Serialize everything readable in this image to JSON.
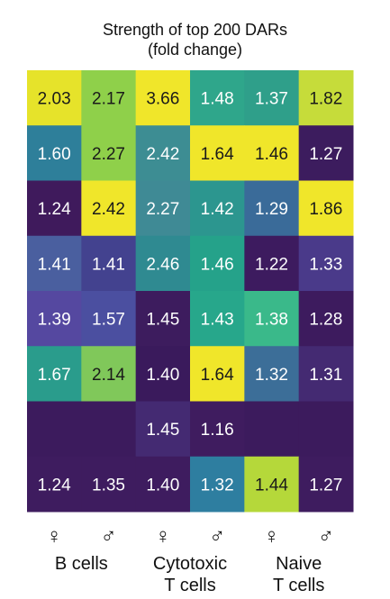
{
  "chart_data": {
    "type": "heatmap",
    "title": [
      "Strength of top 200 DARs",
      "(fold change)"
    ],
    "columns": [
      {
        "group": "B cells",
        "sex": "♀"
      },
      {
        "group": "B cells",
        "sex": "♂"
      },
      {
        "group": "Cytotoxic T cells",
        "sex": "♀"
      },
      {
        "group": "Cytotoxic T cells",
        "sex": "♂"
      },
      {
        "group": "Naive T cells",
        "sex": "♀"
      },
      {
        "group": "Naive T cells",
        "sex": "♂"
      }
    ],
    "group_labels": [
      "B cells",
      "Cytotoxic\nT cells",
      "Naive\nT cells"
    ],
    "values": [
      [
        2.03,
        2.17,
        3.66,
        1.48,
        1.37,
        1.82
      ],
      [
        1.6,
        2.27,
        2.42,
        1.64,
        1.46,
        1.27
      ],
      [
        1.24,
        2.42,
        2.27,
        1.42,
        1.29,
        1.86
      ],
      [
        1.41,
        1.41,
        2.46,
        1.46,
        1.22,
        1.33
      ],
      [
        1.39,
        1.57,
        1.45,
        1.43,
        1.38,
        1.28
      ],
      [
        1.67,
        2.14,
        1.4,
        1.64,
        1.32,
        1.31
      ],
      [
        null,
        null,
        1.45,
        1.16,
        null,
        null
      ],
      [
        1.24,
        1.35,
        1.4,
        1.32,
        1.44,
        1.27
      ]
    ],
    "value_labels": [
      [
        "2.03",
        "2.17",
        "3.66",
        "1.48",
        "1.37",
        "1.82"
      ],
      [
        "1.60",
        "2.27",
        "2.42",
        "1.64",
        "1.46",
        "1.27"
      ],
      [
        "1.24",
        "2.42",
        "2.27",
        "1.42",
        "1.29",
        "1.86"
      ],
      [
        "1.41",
        "1.41",
        "2.46",
        "1.46",
        "1.22",
        "1.33"
      ],
      [
        "1.39",
        "1.57",
        "1.45",
        "1.43",
        "1.38",
        "1.28"
      ],
      [
        "1.67",
        "2.14",
        "1.40",
        "1.64",
        "1.32",
        "1.31"
      ],
      [
        "",
        "",
        "1.45",
        "1.16",
        "",
        ""
      ],
      [
        "1.24",
        "1.35",
        "1.40",
        "1.32",
        "1.44",
        "1.27"
      ]
    ],
    "colormap": "viridis-like",
    "cell_colors": [
      [
        "#e6e32a",
        "#8fd04a",
        "#f0e62a",
        "#2fa68b",
        "#2f9f8a",
        "#c6dc3a"
      ],
      [
        "#2e7f9a",
        "#8fd04a",
        "#3d8d93",
        "#f0e62a",
        "#f0e62a",
        "#3c1c5e"
      ],
      [
        "#3f1a5c",
        "#f0e62a",
        "#3f8a95",
        "#2c968f",
        "#3a6b99",
        "#f0e62a"
      ],
      [
        "#4a5f9f",
        "#43428f",
        "#2f8a91",
        "#25a28a",
        "#3d1b5f",
        "#4a3a8a"
      ],
      [
        "#5548a0",
        "#4b4fa0",
        "#3d1c5e",
        "#27a78b",
        "#3ab98a",
        "#3d1b5e"
      ],
      [
        "#2a9c8c",
        "#80c85a",
        "#3a1a5c",
        "#f0e62a",
        "#3c6e98",
        "#442a72"
      ],
      [
        "#3c1b5d",
        "#3c1b5d",
        "#442a72",
        "#3f1c5f",
        "#3c1b5d",
        "#3c1b5d"
      ],
      [
        "#3e1c5f",
        "#3e1c5f",
        "#3e1c5f",
        "#2e7ea0",
        "#b5d83a",
        "#3e1c5f"
      ]
    ],
    "dark_text_colors": [
      "#e6e32a",
      "#8fd04a",
      "#f0e62a",
      "#c6dc3a",
      "#b5d83a",
      "#80c85a"
    ]
  }
}
